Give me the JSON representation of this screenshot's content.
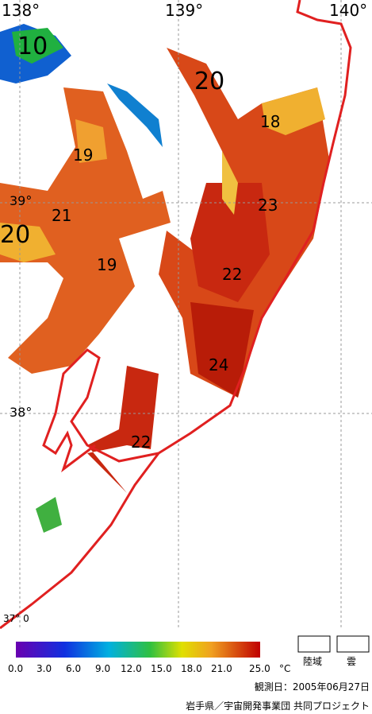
{
  "map": {
    "longitude_labels": [
      "138°",
      "139°",
      "140°"
    ],
    "latitude_labels": [
      "39°",
      "38°"
    ],
    "corner_label": "37° 0",
    "contour_labels": [
      "10",
      "20",
      "18",
      "19",
      "23",
      "21",
      "20",
      "19",
      "22",
      "24",
      "22"
    ]
  },
  "colorbar": {
    "ticks": [
      "0.0",
      "3.0",
      "6.0",
      "9.0",
      "12.0",
      "15.0",
      "18.0",
      "21.0",
      "25.0"
    ],
    "unit": "°C"
  },
  "legend": [
    "陸域",
    "雲"
  ],
  "footer": {
    "date": "観測日：2005年06月27日",
    "credit": "岩手県／宇宙開発事業団 共同プロジェクト"
  }
}
